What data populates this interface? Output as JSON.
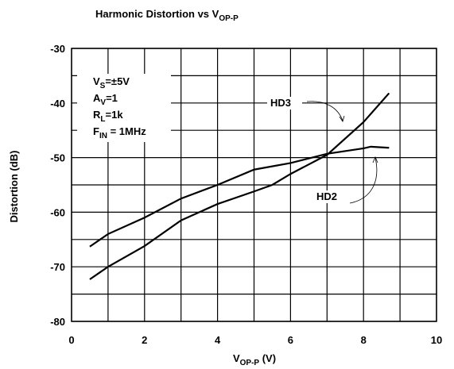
{
  "chart_data": {
    "type": "line",
    "title": {
      "text": "Harmonic Distortion vs V",
      "subscript": "OP-P"
    },
    "xlabel": {
      "text": "V",
      "subscript": "OP-P",
      "suffix": " (V)"
    },
    "ylabel": "Distortion (dB)",
    "xlim": [
      0,
      10
    ],
    "xticks": [
      0,
      2,
      4,
      6,
      8,
      10
    ],
    "xminor": [
      1,
      3,
      5,
      7,
      9
    ],
    "ylim": [
      -80,
      -30
    ],
    "yticks": [
      -80,
      -70,
      -60,
      -50,
      -40,
      -30
    ],
    "yminor": [
      -75,
      -65,
      -55,
      -45,
      -35
    ],
    "grid": true,
    "conditions": [
      {
        "text": "V",
        "subscript": "S",
        "suffix": "=±5V"
      },
      {
        "text": "A",
        "subscript": "V",
        "suffix": "=1"
      },
      {
        "text": "R",
        "subscript": "L",
        "suffix": "=1k"
      },
      {
        "text": "F",
        "subscript": "IN",
        "suffix": " = 1MHz"
      }
    ],
    "series": [
      {
        "name": "HD2",
        "color": "#000000",
        "x": [
          0.5,
          1,
          2,
          3,
          4,
          5,
          6,
          7,
          8,
          8.2,
          8.7
        ],
        "values": [
          -66.3,
          -64,
          -61,
          -57.5,
          -55,
          -52.2,
          -51,
          -49.3,
          -48.3,
          -48,
          -48.2
        ]
      },
      {
        "name": "HD3",
        "color": "#000000",
        "x": [
          0.5,
          1,
          2,
          3,
          4,
          5,
          5.5,
          6,
          7,
          8,
          8.7
        ],
        "values": [
          -72.3,
          -70,
          -66.2,
          -61.5,
          -58.5,
          -56.2,
          -55,
          -53,
          -49.5,
          -43.5,
          -38.2
        ]
      }
    ]
  }
}
